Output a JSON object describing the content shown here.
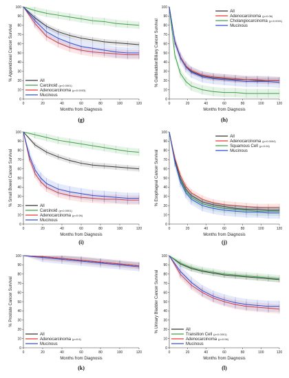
{
  "chart_data": [
    {
      "panel": "(g)",
      "type": "line",
      "ylabel": "% Appendiceal Cancer Survival",
      "xlabel": "Months from Diagnosis",
      "xlim": [
        0,
        120
      ],
      "ylim": [
        0,
        100
      ],
      "xticks": [
        0,
        20,
        40,
        60,
        80,
        100,
        120
      ],
      "yticks": [
        0,
        10,
        20,
        30,
        40,
        50,
        60,
        70,
        80,
        90,
        100
      ],
      "legend_position": "bottom-left",
      "series": [
        {
          "name": "All",
          "color": "#333333",
          "x": [
            0,
            12,
            24,
            36,
            48,
            60,
            72,
            84,
            96,
            108,
            120
          ],
          "y": [
            100,
            88,
            79,
            73,
            69,
            66,
            64,
            62,
            61,
            60,
            59
          ]
        },
        {
          "name": "Carcinoid",
          "note": "(p<0.0001)",
          "color": "#3aa041",
          "x": [
            0,
            12,
            24,
            36,
            48,
            60,
            72,
            84,
            96,
            108,
            120
          ],
          "y": [
            100,
            96,
            93,
            91,
            89,
            87,
            85,
            84,
            82,
            81,
            80
          ]
        },
        {
          "name": "Adenocarcinoma",
          "note": "(p=0.0003)",
          "color": "#e8382e",
          "x": [
            0,
            12,
            24,
            36,
            48,
            60,
            72,
            84,
            96,
            108,
            120
          ],
          "y": [
            100,
            82,
            68,
            61,
            56,
            53,
            51,
            50,
            49,
            48,
            48
          ]
        },
        {
          "name": "Mucinous",
          "color": "#2a4fd6",
          "x": [
            0,
            12,
            24,
            36,
            48,
            60,
            72,
            84,
            96,
            108,
            120
          ],
          "y": [
            100,
            85,
            73,
            66,
            61,
            57,
            55,
            53,
            51,
            50,
            50
          ]
        }
      ]
    },
    {
      "panel": "(h)",
      "type": "line",
      "ylabel": "% Gallbladder/Biliary Cancer Survival",
      "xlabel": "Months from Diagnosis",
      "xlim": [
        0,
        120
      ],
      "ylim": [
        0,
        100
      ],
      "xticks": [
        0,
        20,
        40,
        60,
        80,
        100,
        120
      ],
      "yticks": [
        0,
        10,
        20,
        30,
        40,
        50,
        60,
        70,
        80,
        90,
        100
      ],
      "legend_position": "top-right",
      "series": [
        {
          "name": "All",
          "color": "#333333",
          "x": [
            0,
            6,
            12,
            18,
            24,
            36,
            48,
            60,
            72,
            84,
            96,
            108,
            120
          ],
          "y": [
            100,
            62,
            45,
            35,
            30,
            25,
            23,
            22,
            21,
            21,
            20,
            20,
            20
          ]
        },
        {
          "name": "Adenocarcinoma",
          "note": "(p=0.06)",
          "color": "#e8382e",
          "x": [
            0,
            6,
            12,
            18,
            24,
            36,
            48,
            60,
            72,
            84,
            96,
            108,
            120
          ],
          "y": [
            100,
            63,
            46,
            36,
            31,
            26,
            24,
            23,
            22,
            21,
            21,
            20,
            20
          ]
        },
        {
          "name": "Cholangiocarcinoma",
          "note": "(p<0.0001)",
          "color": "#3aa041",
          "x": [
            0,
            6,
            12,
            18,
            24,
            36,
            48,
            60,
            72,
            84,
            96,
            108,
            120
          ],
          "y": [
            100,
            48,
            28,
            19,
            14,
            10,
            8,
            7,
            7,
            6,
            6,
            6,
            6
          ]
        },
        {
          "name": "Mucinous",
          "color": "#2a4fd6",
          "x": [
            0,
            6,
            12,
            18,
            24,
            36,
            48,
            60,
            72,
            84,
            96,
            108,
            120
          ],
          "y": [
            100,
            62,
            45,
            35,
            29,
            24,
            22,
            21,
            20,
            19,
            19,
            19,
            18
          ]
        }
      ]
    },
    {
      "panel": "(i)",
      "type": "line",
      "ylabel": "% Small Bowel Cancer Survival",
      "xlabel": "Months from Diagnosis",
      "xlim": [
        0,
        120
      ],
      "ylim": [
        0,
        100
      ],
      "xticks": [
        0,
        20,
        40,
        60,
        80,
        100,
        120
      ],
      "yticks": [
        0,
        10,
        20,
        30,
        40,
        50,
        60,
        70,
        80,
        90,
        100
      ],
      "legend_position": "bottom-left",
      "series": [
        {
          "name": "All",
          "color": "#333333",
          "x": [
            0,
            12,
            24,
            36,
            48,
            60,
            72,
            84,
            96,
            108,
            120
          ],
          "y": [
            100,
            86,
            78,
            73,
            69,
            66,
            64,
            63,
            62,
            61,
            60
          ]
        },
        {
          "name": "Carcinoid",
          "note": "(p<0.0001)",
          "color": "#3aa041",
          "x": [
            0,
            12,
            24,
            36,
            48,
            60,
            72,
            84,
            96,
            108,
            120
          ],
          "y": [
            100,
            97,
            94,
            91,
            89,
            87,
            85,
            83,
            81,
            79,
            78
          ]
        },
        {
          "name": "Adenocarcinoma",
          "note": "(p=0.06)",
          "color": "#e8382e",
          "x": [
            0,
            6,
            12,
            18,
            24,
            36,
            48,
            60,
            72,
            84,
            96,
            108,
            120
          ],
          "y": [
            100,
            72,
            55,
            46,
            40,
            34,
            31,
            29,
            28,
            27,
            27,
            26,
            26
          ]
        },
        {
          "name": "Mucinous",
          "color": "#2a4fd6",
          "x": [
            0,
            6,
            12,
            18,
            24,
            36,
            48,
            60,
            72,
            84,
            96,
            108,
            120
          ],
          "y": [
            100,
            75,
            59,
            50,
            44,
            38,
            35,
            33,
            31,
            30,
            29,
            28,
            28
          ]
        }
      ]
    },
    {
      "panel": "(j)",
      "type": "line",
      "ylabel": "% Esophageal Cancer Survival",
      "xlabel": "Months from Diagnosis",
      "xlim": [
        0,
        120
      ],
      "ylim": [
        0,
        100
      ],
      "xticks": [
        0,
        20,
        40,
        60,
        80,
        100,
        120
      ],
      "yticks": [
        0,
        10,
        20,
        30,
        40,
        50,
        60,
        70,
        80,
        90,
        100
      ],
      "legend_position": "top-right",
      "series": [
        {
          "name": "All",
          "color": "#333333",
          "x": [
            0,
            6,
            12,
            18,
            24,
            36,
            48,
            60,
            72,
            84,
            96,
            108,
            120
          ],
          "y": [
            100,
            70,
            50,
            38,
            31,
            24,
            21,
            19,
            17,
            16,
            16,
            15,
            15
          ]
        },
        {
          "name": "Adenocarcinoma",
          "note": "(p=0.0004)",
          "color": "#e8382e",
          "x": [
            0,
            6,
            12,
            18,
            24,
            36,
            48,
            60,
            72,
            84,
            96,
            108,
            120
          ],
          "y": [
            100,
            72,
            53,
            41,
            34,
            27,
            23,
            21,
            20,
            19,
            18,
            18,
            18
          ]
        },
        {
          "name": "Squamous Cell",
          "note": "(p=0.04)",
          "color": "#3aa041",
          "x": [
            0,
            6,
            12,
            18,
            24,
            36,
            48,
            60,
            72,
            84,
            96,
            108,
            120
          ],
          "y": [
            100,
            68,
            48,
            36,
            29,
            22,
            19,
            17,
            16,
            15,
            14,
            14,
            14
          ]
        },
        {
          "name": "Mucinous",
          "color": "#2a4fd6",
          "x": [
            0,
            6,
            12,
            18,
            24,
            36,
            48,
            60,
            72,
            84,
            96,
            108,
            120
          ],
          "y": [
            100,
            68,
            46,
            34,
            27,
            20,
            17,
            15,
            14,
            13,
            13,
            12,
            12
          ]
        }
      ]
    },
    {
      "panel": "(k)",
      "type": "line",
      "ylabel": "% Prostate Cancer Survival",
      "xlabel": "Months from Diagnosis",
      "xlim": [
        0,
        120
      ],
      "ylim": [
        0,
        100
      ],
      "xticks": [
        0,
        20,
        40,
        60,
        80,
        100,
        120
      ],
      "yticks": [
        0,
        10,
        20,
        30,
        40,
        50,
        60,
        70,
        80,
        90,
        100
      ],
      "legend_position": "bottom-left",
      "series": [
        {
          "name": "All",
          "color": "#333333",
          "x": [
            0,
            20,
            40,
            60,
            80,
            100,
            120
          ],
          "y": [
            100,
            99,
            97,
            95,
            93,
            91,
            89
          ]
        },
        {
          "name": "Adenocarcinoma",
          "note": "(p=0.6)",
          "color": "#e8382e",
          "x": [
            0,
            20,
            40,
            60,
            80,
            100,
            120
          ],
          "y": [
            100,
            99,
            97,
            95,
            93,
            91,
            89
          ]
        },
        {
          "name": "Mucinous",
          "color": "#2a4fd6",
          "x": [
            0,
            20,
            40,
            60,
            80,
            100,
            120
          ],
          "y": [
            100,
            98,
            96,
            94,
            92,
            90,
            88
          ]
        }
      ]
    },
    {
      "panel": "(l)",
      "type": "line",
      "ylabel": "% Urinary Bladder Cancer Survival",
      "xlabel": "Months from Diagnosis",
      "xlim": [
        0,
        120
      ],
      "ylim": [
        0,
        100
      ],
      "xticks": [
        0,
        20,
        40,
        60,
        80,
        100,
        120
      ],
      "yticks": [
        0,
        10,
        20,
        30,
        40,
        50,
        60,
        70,
        80,
        90,
        100
      ],
      "legend_position": "bottom-left",
      "series": [
        {
          "name": "All",
          "color": "#333333",
          "x": [
            0,
            12,
            24,
            36,
            48,
            60,
            72,
            84,
            96,
            108,
            120
          ],
          "y": [
            100,
            91,
            86,
            83,
            81,
            79,
            78,
            77,
            76,
            75,
            74
          ]
        },
        {
          "name": "Transition Cell",
          "note": "(p<0.0001)",
          "color": "#3aa041",
          "x": [
            0,
            12,
            24,
            36,
            48,
            60,
            72,
            84,
            96,
            108,
            120
          ],
          "y": [
            100,
            92,
            87,
            84,
            82,
            80,
            79,
            78,
            77,
            76,
            75
          ]
        },
        {
          "name": "Adenocarcinoma",
          "note": "(p=0.06)",
          "color": "#e8382e",
          "x": [
            0,
            12,
            24,
            36,
            48,
            60,
            72,
            84,
            96,
            108,
            120
          ],
          "y": [
            100,
            80,
            68,
            60,
            54,
            50,
            47,
            45,
            44,
            43,
            42
          ]
        },
        {
          "name": "Mucinous",
          "color": "#2a4fd6",
          "x": [
            0,
            12,
            24,
            36,
            48,
            60,
            72,
            84,
            96,
            108,
            120
          ],
          "y": [
            100,
            83,
            71,
            62,
            56,
            52,
            49,
            47,
            46,
            45,
            45
          ]
        }
      ]
    }
  ]
}
